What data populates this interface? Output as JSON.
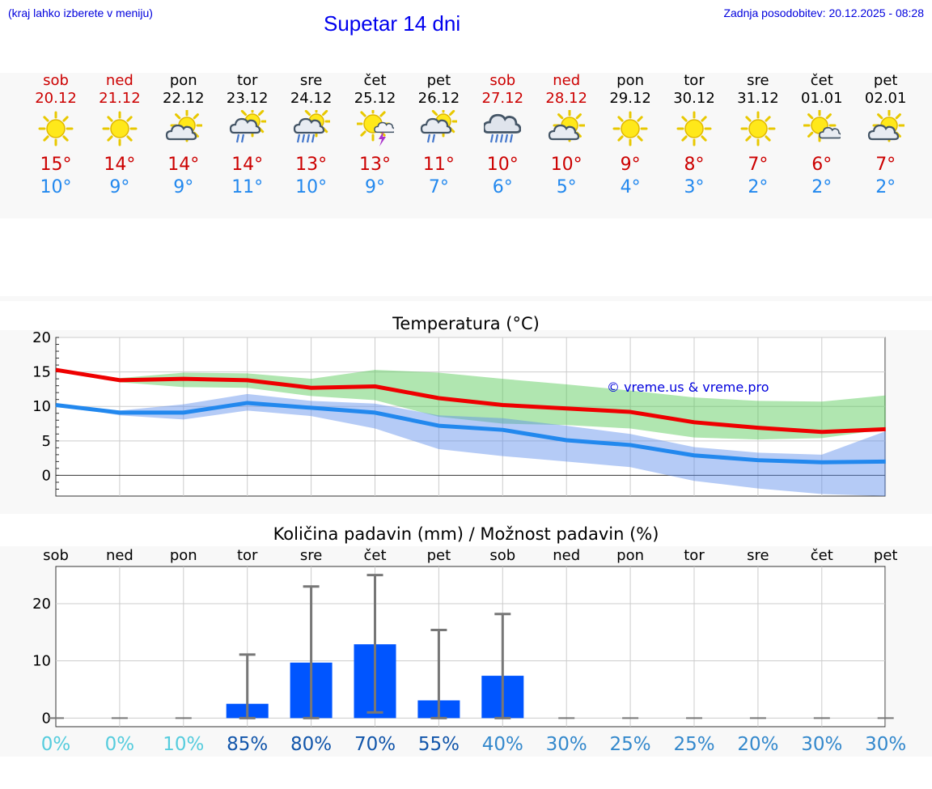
{
  "header": {
    "hint": "(kraj lahko izberete v meniju)",
    "title": "Supetar 14 dni",
    "updated": "Zadnja posodobitev: 20.12.2025 - 08:28"
  },
  "colors": {
    "weekday": "#000000",
    "weekend": "#cc0000",
    "tmax": "#ee0000",
    "tmin": "#2288ee",
    "bar": "#0055ff"
  },
  "days": [
    {
      "name": "sob",
      "date": "20.12",
      "weekend": true,
      "icon": "sun",
      "tmax": "15°",
      "tmin": "10°"
    },
    {
      "name": "ned",
      "date": "21.12",
      "weekend": true,
      "icon": "sun",
      "tmax": "14°",
      "tmin": "9°"
    },
    {
      "name": "pon",
      "date": "22.12",
      "weekend": false,
      "icon": "sun-cloud",
      "tmax": "14°",
      "tmin": "9°"
    },
    {
      "name": "tor",
      "date": "23.12",
      "weekend": false,
      "icon": "sun-cloud-rain",
      "tmax": "14°",
      "tmin": "11°"
    },
    {
      "name": "sre",
      "date": "24.12",
      "weekend": false,
      "icon": "sun-cloud-heavy-rain",
      "tmax": "13°",
      "tmin": "10°"
    },
    {
      "name": "čet",
      "date": "25.12",
      "weekend": false,
      "icon": "sun-thunder",
      "tmax": "13°",
      "tmin": "9°"
    },
    {
      "name": "pet",
      "date": "26.12",
      "weekend": false,
      "icon": "sun-cloud-rain",
      "tmax": "11°",
      "tmin": "7°"
    },
    {
      "name": "sob",
      "date": "27.12",
      "weekend": true,
      "icon": "cloud-heavy-rain",
      "tmax": "10°",
      "tmin": "6°"
    },
    {
      "name": "ned",
      "date": "28.12",
      "weekend": true,
      "icon": "sun-cloud",
      "tmax": "10°",
      "tmin": "5°"
    },
    {
      "name": "pon",
      "date": "29.12",
      "weekend": false,
      "icon": "sun",
      "tmax": "9°",
      "tmin": "4°"
    },
    {
      "name": "tor",
      "date": "30.12",
      "weekend": false,
      "icon": "sun",
      "tmax": "8°",
      "tmin": "3°"
    },
    {
      "name": "sre",
      "date": "31.12",
      "weekend": false,
      "icon": "sun",
      "tmax": "7°",
      "tmin": "2°"
    },
    {
      "name": "čet",
      "date": "01.01",
      "weekend": false,
      "icon": "sun-small-cloud",
      "tmax": "6°",
      "tmin": "2°"
    },
    {
      "name": "pet",
      "date": "02.01",
      "weekend": false,
      "icon": "sun-cloud",
      "tmax": "7°",
      "tmin": "2°"
    }
  ],
  "chart_data": [
    {
      "type": "line",
      "title": "Temperatura (°C)",
      "watermark": "© vreme.us & vreme.pro",
      "x": [
        0,
        1,
        2,
        3,
        4,
        5,
        6,
        7,
        8,
        9,
        10,
        11,
        12,
        13
      ],
      "ylim": [
        -3,
        20
      ],
      "yticks": [
        0,
        5,
        10,
        15,
        20
      ],
      "series": [
        {
          "name": "tmax",
          "values": [
            15.3,
            13.8,
            14.0,
            13.8,
            12.7,
            12.9,
            11.2,
            10.2,
            9.7,
            9.2,
            7.7,
            6.9,
            6.3,
            6.7
          ]
        },
        {
          "name": "tmin",
          "values": [
            10.2,
            9.1,
            9.1,
            10.5,
            9.8,
            9.1,
            7.2,
            6.6,
            5.1,
            4.4,
            2.9,
            2.2,
            1.9,
            2.0
          ]
        }
      ],
      "bands": [
        {
          "name": "tmax-range",
          "low": [
            15.3,
            13.5,
            12.8,
            12.7,
            11.5,
            10.9,
            8.5,
            7.5,
            7.3,
            6.8,
            5.5,
            5.2,
            5.4,
            6.7
          ],
          "high": [
            15.3,
            14.1,
            14.9,
            14.8,
            14.0,
            15.3,
            14.9,
            14.0,
            13.2,
            12.3,
            11.3,
            10.8,
            10.7,
            11.6
          ]
        },
        {
          "name": "tmin-range",
          "low": [
            10.2,
            8.7,
            8.1,
            9.4,
            8.6,
            6.8,
            3.8,
            2.8,
            2.0,
            1.2,
            -0.8,
            -1.9,
            -2.7,
            -3.0
          ],
          "high": [
            10.2,
            9.4,
            10.3,
            11.8,
            10.8,
            10.4,
            8.7,
            8.3,
            7.2,
            6.0,
            4.1,
            3.3,
            3.0,
            6.4
          ]
        }
      ]
    },
    {
      "type": "bar",
      "title": "Količina padavin (mm) / Možnost padavin (%)",
      "categories": [
        "sob",
        "ned",
        "pon",
        "tor",
        "sre",
        "čet",
        "pet",
        "sob",
        "ned",
        "pon",
        "tor",
        "sre",
        "čet",
        "pet"
      ],
      "ylim": [
        -1.5,
        26.5
      ],
      "yticks": [
        0,
        10,
        20
      ],
      "values": [
        0,
        0,
        0,
        2.5,
        9.7,
        12.9,
        3.1,
        7.4,
        0,
        0,
        0,
        0,
        0,
        0
      ],
      "error_low": [
        0,
        0,
        0,
        0,
        0,
        1,
        0,
        0,
        0,
        0,
        0,
        0,
        0,
        0
      ],
      "error_high": [
        0,
        0,
        0,
        11.1,
        23.0,
        25.0,
        15.4,
        18.2,
        0,
        0,
        0,
        0,
        0,
        0
      ],
      "probabilities": [
        "0%",
        "0%",
        "10%",
        "85%",
        "80%",
        "70%",
        "55%",
        "40%",
        "30%",
        "25%",
        "25%",
        "20%",
        "30%",
        "30%"
      ],
      "probability_colors": [
        "#55ccdd",
        "#55ccdd",
        "#55ccdd",
        "#1155aa",
        "#1155aa",
        "#1155aa",
        "#1155aa",
        "#3388cc",
        "#3388cc",
        "#3388cc",
        "#3388cc",
        "#3388cc",
        "#3388cc",
        "#3388cc"
      ]
    }
  ]
}
